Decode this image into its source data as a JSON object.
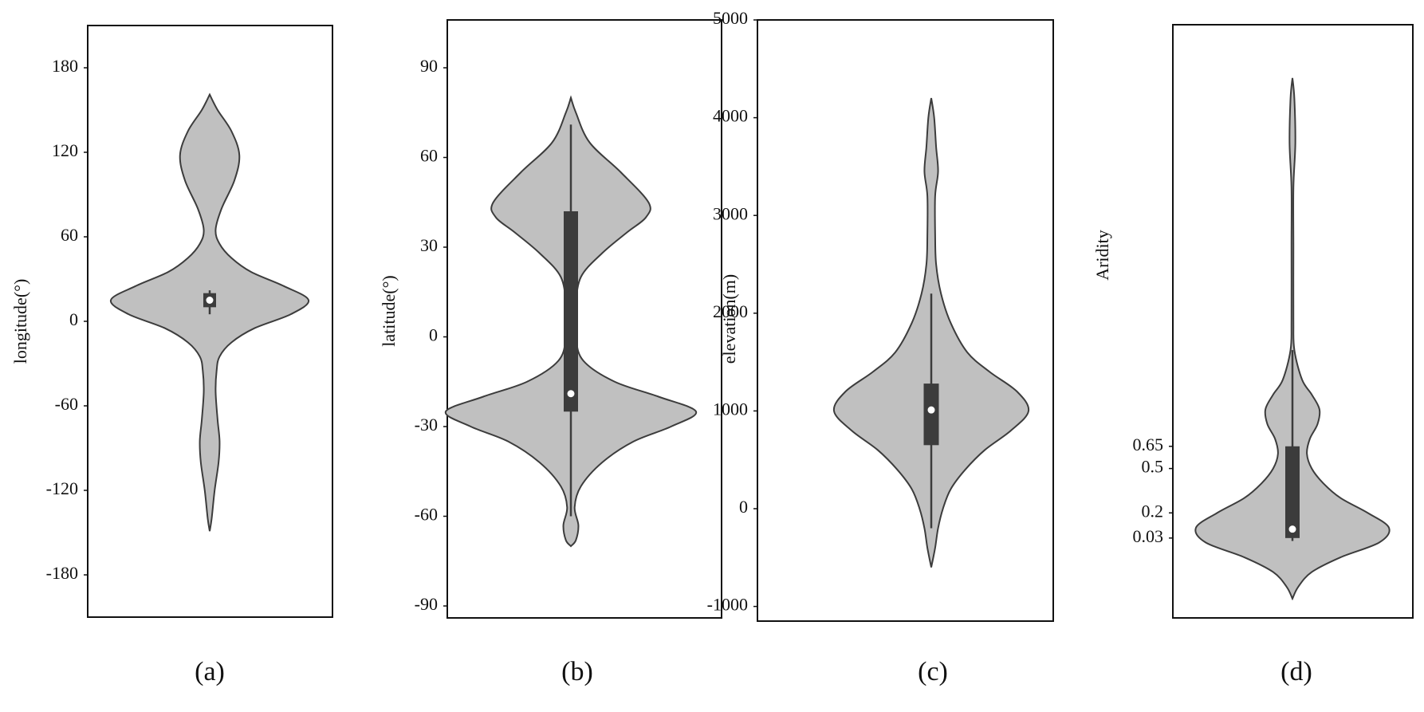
{
  "chart_data": [
    {
      "type": "violin",
      "caption": "(a)",
      "ylabel": "longitude(°)",
      "color": "#c0c0c0",
      "edge_color": "#3c3c3c",
      "box_color": "#3c3c3c",
      "ylim": [
        -210,
        210
      ],
      "yticks": [
        180,
        120,
        60,
        0,
        -60,
        -120,
        -180
      ],
      "density": {
        "y": [
          161,
          150,
          135,
          118,
          100,
          80,
          65,
          55,
          45,
          35,
          25,
          15,
          5,
          -5,
          -15,
          -25,
          -35,
          -50,
          -70,
          -85,
          -100,
          -120,
          -140,
          -149
        ],
        "width": [
          0,
          0.08,
          0.22,
          0.3,
          0.25,
          0.12,
          0.06,
          0.1,
          0.22,
          0.42,
          0.75,
          1.0,
          0.82,
          0.45,
          0.22,
          0.1,
          0.07,
          0.06,
          0.08,
          0.1,
          0.09,
          0.05,
          0.02,
          0
        ]
      },
      "box": {
        "whisker_low": 5,
        "q1": 10,
        "median": 15,
        "q3": 20,
        "whisker_high": 22
      }
    },
    {
      "type": "violin",
      "caption": "(b)",
      "ylabel": "latitude(°)",
      "color": "#c0c0c0",
      "edge_color": "#3c3c3c",
      "box_color": "#3c3c3c",
      "ylim": [
        -94,
        106
      ],
      "yticks": [
        90,
        60,
        30,
        0,
        -30,
        -60,
        -90
      ],
      "density": {
        "y": [
          80,
          75,
          65,
          55,
          45,
          40,
          35,
          28,
          20,
          10,
          0,
          -8,
          -15,
          -20,
          -25,
          -30,
          -35,
          -42,
          -50,
          -57,
          -63,
          -68,
          -70
        ],
        "width": [
          0,
          0.04,
          0.15,
          0.4,
          0.62,
          0.6,
          0.45,
          0.25,
          0.08,
          0.04,
          0.04,
          0.1,
          0.35,
          0.7,
          1.0,
          0.8,
          0.5,
          0.25,
          0.08,
          0.03,
          0.06,
          0.04,
          0
        ]
      },
      "box": {
        "whisker_low": -60,
        "q1": -25,
        "median": -19,
        "q3": 42,
        "whisker_high": 71
      }
    },
    {
      "type": "violin",
      "caption": "(c)",
      "ylabel": "elevation(m)",
      "color": "#c0c0c0",
      "edge_color": "#3c3c3c",
      "box_color": "#3c3c3c",
      "ylim": [
        -1150,
        5000
      ],
      "yticks": [
        5000,
        4000,
        3000,
        2000,
        1000,
        0,
        -1000
      ],
      "density": {
        "y": [
          4200,
          4000,
          3700,
          3450,
          3200,
          2800,
          2500,
          2200,
          1900,
          1600,
          1400,
          1200,
          1000,
          800,
          600,
          400,
          200,
          0,
          -200,
          -400,
          -600
        ],
        "width": [
          0,
          0.03,
          0.05,
          0.07,
          0.04,
          0.04,
          0.05,
          0.1,
          0.2,
          0.37,
          0.6,
          0.88,
          1.0,
          0.82,
          0.55,
          0.35,
          0.2,
          0.12,
          0.07,
          0.04,
          0
        ]
      },
      "box": {
        "whisker_low": -200,
        "q1": 650,
        "median": 1010,
        "q3": 1280,
        "whisker_high": 2200
      }
    },
    {
      "type": "violin",
      "caption": "(d)",
      "ylabel": "Aridity",
      "color": "#c0c0c0",
      "edge_color": "#3c3c3c",
      "box_color": "#3c3c3c",
      "ylim": [
        -0.51,
        3.5
      ],
      "yticks": [
        0.65,
        0.5,
        0.2,
        0.03
      ],
      "density": {
        "y": [
          3.14,
          3.0,
          2.7,
          2.4,
          2.0,
          1.5,
          1.3,
          1.1,
          1.0,
          0.9,
          0.8,
          0.7,
          0.6,
          0.5,
          0.4,
          0.3,
          0.2,
          0.1,
          0.0,
          -0.1,
          -0.2,
          -0.3,
          -0.38
        ],
        "width": [
          0,
          0.02,
          0.03,
          0.01,
          0.01,
          0.01,
          0.02,
          0.1,
          0.2,
          0.28,
          0.26,
          0.18,
          0.15,
          0.2,
          0.32,
          0.5,
          0.78,
          1.0,
          0.9,
          0.5,
          0.2,
          0.06,
          0
        ]
      },
      "box": {
        "whisker_low": 0.01,
        "q1": 0.03,
        "median": 0.09,
        "q3": 0.65,
        "whisker_high": 1.3
      }
    }
  ]
}
